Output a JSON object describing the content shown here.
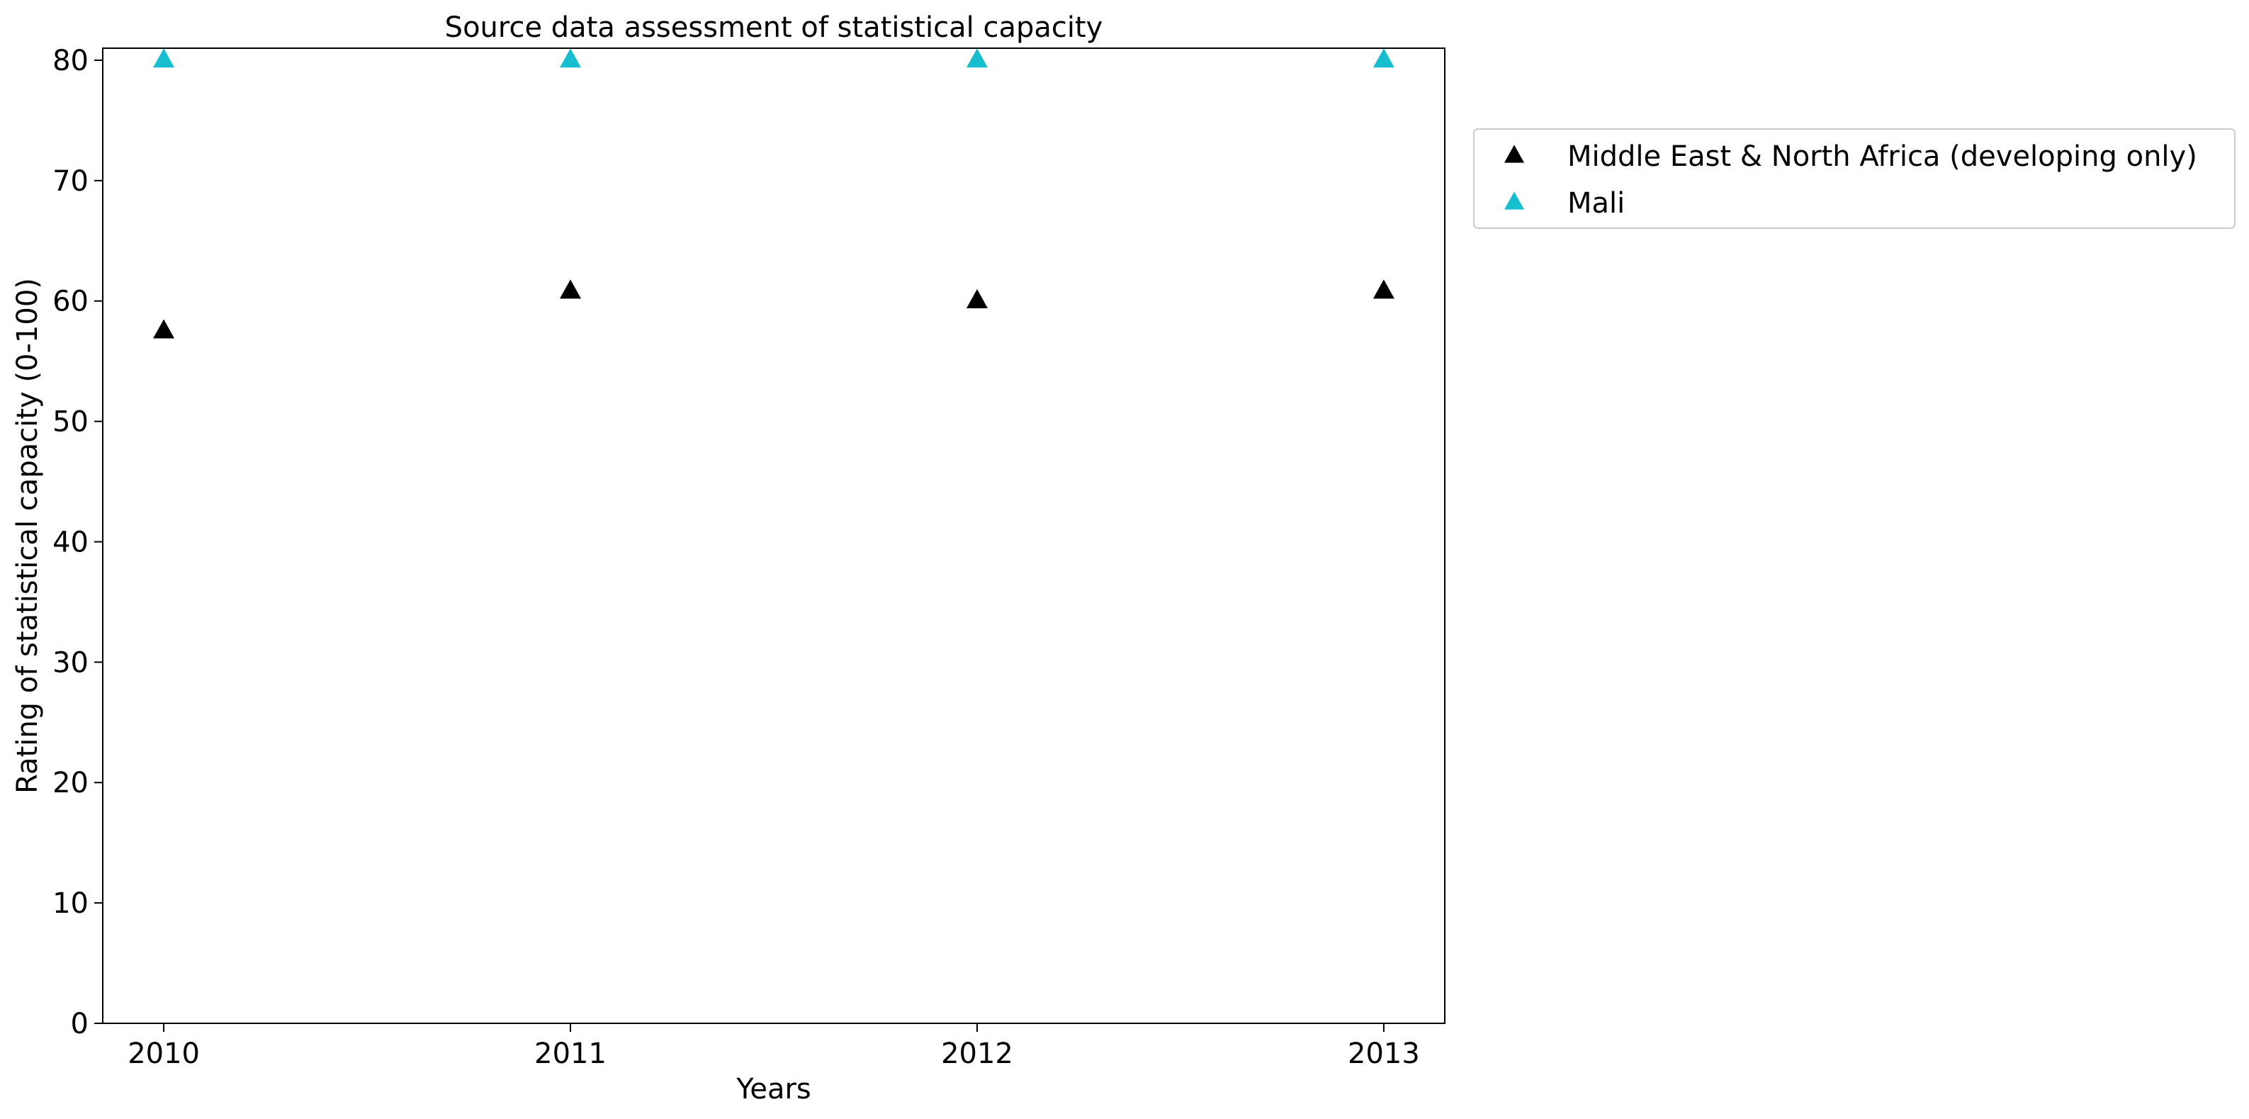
{
  "chart_data": {
    "type": "scatter",
    "title": "Source data assessment of statistical capacity",
    "xlabel": "Years",
    "ylabel": "Rating of statistical capacity (0-100)",
    "x": [
      "2010",
      "2011",
      "2012",
      "2013"
    ],
    "xlim": [
      2009.85,
      2013.15
    ],
    "ylim": [
      0,
      81
    ],
    "yticks": [
      0,
      10,
      20,
      30,
      40,
      50,
      60,
      70,
      80
    ],
    "grid": false,
    "legend_position": "outside-right",
    "marker": "triangle-up",
    "series": [
      {
        "name": "Middle East & North Africa (developing only)",
        "color": "#000000",
        "values": [
          57.5,
          60.8,
          60.0,
          60.8
        ]
      },
      {
        "name": "Mali",
        "color": "#17becf",
        "values": [
          80,
          80,
          80,
          80
        ]
      }
    ]
  }
}
